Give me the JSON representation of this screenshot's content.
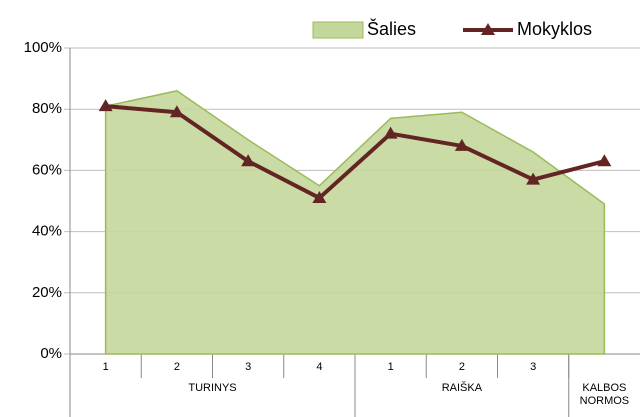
{
  "chart_data": {
    "type": "area-line",
    "categories": [
      "1",
      "2",
      "3",
      "4",
      "1",
      "2",
      "3",
      null
    ],
    "groups": [
      {
        "name": "TURINYS",
        "size": 4
      },
      {
        "name": "RAIŠKA",
        "size": 3
      },
      {
        "name": "KALBOS NORMOS",
        "size": 1
      }
    ],
    "series": [
      {
        "name": "Šalies",
        "type": "area",
        "color": "#c4d79b",
        "edge_color": "#9bbb59",
        "values": [
          81,
          86,
          70,
          55,
          77,
          79,
          66,
          49
        ]
      },
      {
        "name": "Mokyklos",
        "type": "line",
        "color": "#632523",
        "values": [
          81,
          79,
          63,
          51,
          72,
          68,
          57,
          63
        ]
      }
    ],
    "ylim": [
      0,
      100
    ],
    "yticks": [
      {
        "value": 0,
        "label": "0%"
      },
      {
        "value": 20,
        "label": "20%"
      },
      {
        "value": 40,
        "label": "40%"
      },
      {
        "value": 60,
        "label": "60%"
      },
      {
        "value": 80,
        "label": "80%"
      },
      {
        "value": 100,
        "label": "100%"
      }
    ],
    "grid": true,
    "legend": "top-right"
  }
}
